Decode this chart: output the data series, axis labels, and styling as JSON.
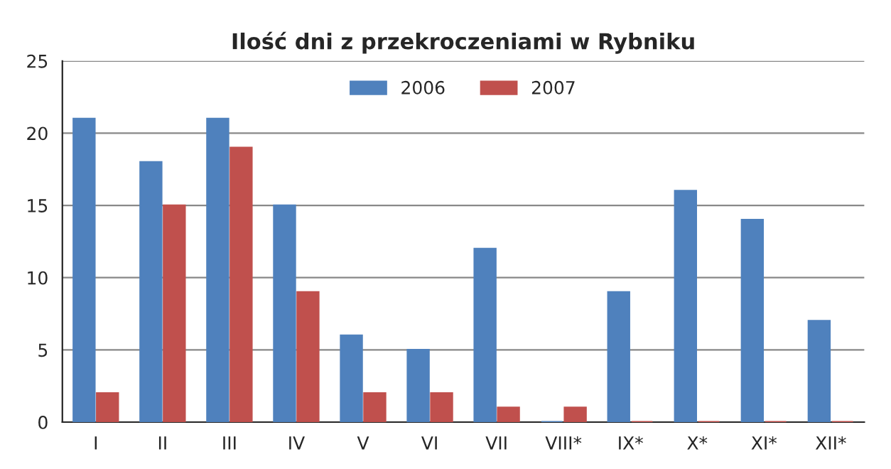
{
  "chart_data": {
    "type": "bar",
    "title": "Ilość dni z przekroczeniami w Rybniku",
    "categories": [
      "I",
      "II",
      "III",
      "IV",
      "V",
      "VI",
      "VII",
      "VIII*",
      "IX*",
      "X*",
      "XI*",
      "XII*"
    ],
    "series": [
      {
        "name": "2006",
        "color": "#4f81bd",
        "values": [
          21,
          18,
          21,
          15,
          6,
          5,
          12,
          0,
          9,
          16,
          14,
          7
        ]
      },
      {
        "name": "2007",
        "color": "#c0504d",
        "values": [
          2,
          15,
          19,
          9,
          2,
          2,
          1,
          1,
          0,
          0,
          0,
          0
        ]
      }
    ],
    "ylim": [
      0,
      25
    ],
    "yticks": [
      0,
      5,
      10,
      15,
      20,
      25
    ],
    "grid": "y",
    "legend": "top"
  }
}
